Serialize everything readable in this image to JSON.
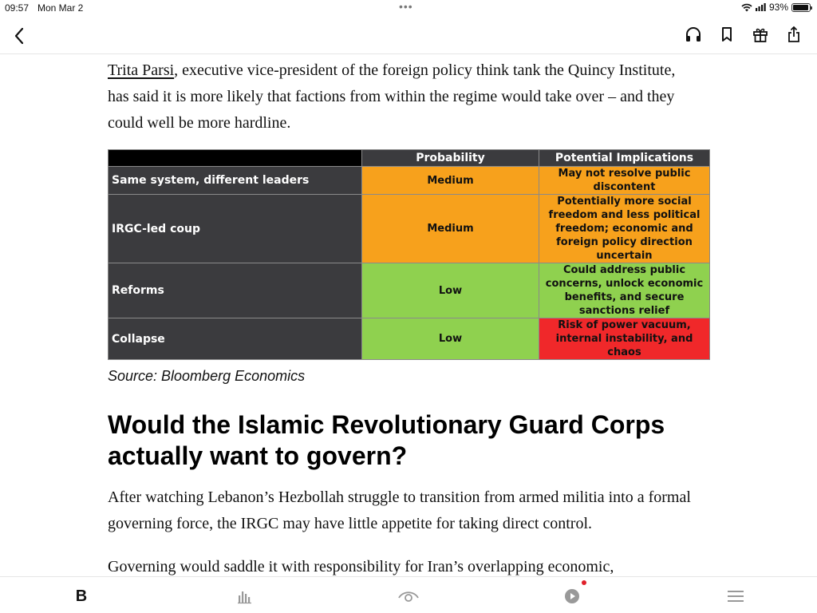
{
  "status": {
    "time": "09:57",
    "date": "Mon Mar 2",
    "battery": "93%",
    "battery_level": 0.93
  },
  "nav": {
    "icons": [
      "back-icon",
      "headphones-icon",
      "bookmark-icon",
      "gift-icon",
      "share-icon"
    ]
  },
  "article": {
    "p1_link": "Trita Parsi",
    "p1_rest": ", executive vice-president of the foreign policy think tank the Quincy Institute, has said it is more likely that factions from within the regime would take over – and they could well be more hardline.",
    "table": {
      "headers": [
        "Probability",
        "Potential Implications"
      ],
      "rows": [
        {
          "scenario": "Same system, different leaders",
          "probability": "Medium",
          "implications": "May not resolve public discontent",
          "prob_color": "orange",
          "impl_color": "orange"
        },
        {
          "scenario": "IRGC-led coup",
          "probability": "Medium",
          "implications": "Potentially more social freedom and less political freedom; economic and foreign policy direction uncertain",
          "prob_color": "orange",
          "impl_color": "orange"
        },
        {
          "scenario": "Reforms",
          "probability": "Low",
          "implications": "Could address public concerns, unlock economic benefits, and secure sanctions relief",
          "prob_color": "green",
          "impl_color": "green"
        },
        {
          "scenario": "Collapse",
          "probability": "Low",
          "implications": "Risk of power vacuum, internal instability, and chaos",
          "prob_color": "green",
          "impl_color": "red"
        }
      ]
    },
    "source": "Source: Bloomberg Economics",
    "heading": "Would the Islamic Revolutionary Guard Corps actually want to govern?",
    "p2": "After watching Lebanon’s Hezbollah struggle to transition from armed militia into a formal governing force, the IRGC may have little appetite for taking direct control.",
    "p3": "Governing would saddle it with responsibility for Iran’s overlapping economic,"
  },
  "tabbar": {
    "home_label": "B",
    "icons": [
      "home-tab",
      "charts-icon",
      "eye-icon",
      "play-icon",
      "menu-icon"
    ]
  },
  "colors": {
    "orange": "#f7a11c",
    "green": "#8fd14f",
    "red": "#f0282a",
    "dark_cell": "#3b3b3e"
  }
}
